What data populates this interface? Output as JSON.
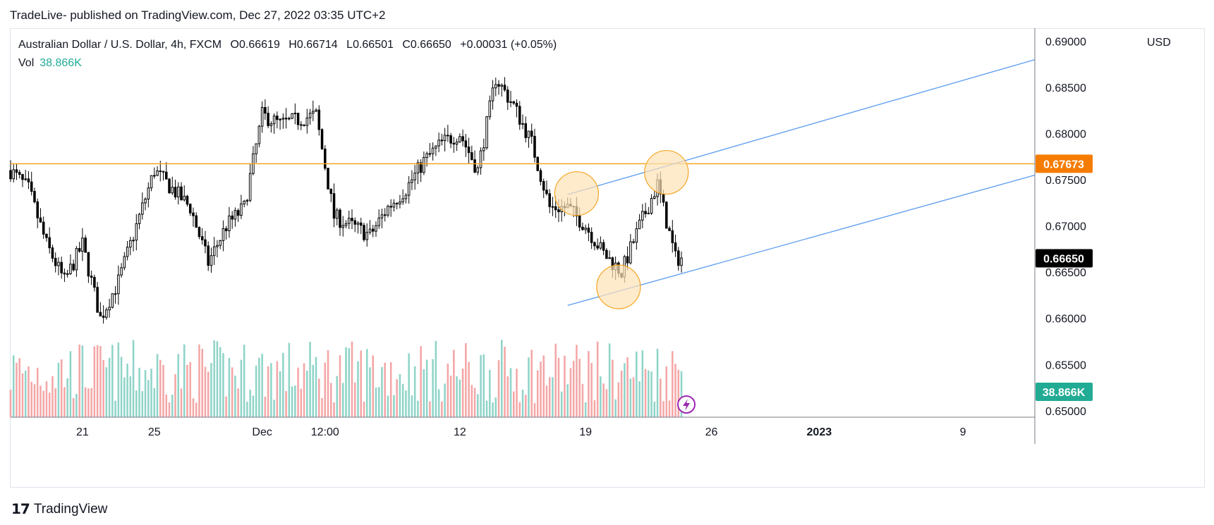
{
  "publisher_line": "TradeLive- published on TradingView.com, Dec 27, 2022 03:35 UTC+2",
  "legend": {
    "symbol": "Australian Dollar / U.S. Dollar, 4h, FXCM",
    "o_label": "O",
    "o_value": "0.66619",
    "h_label": "H",
    "h_value": "0.66714",
    "l_label": "L",
    "l_value": "0.66501",
    "c_label": "C",
    "c_value": "0.66650",
    "change": "+0.00031 (+0.05%)",
    "vol_label": "Vol",
    "vol_value": "38.866K"
  },
  "axis_unit": "USD",
  "footer_brand": "TradingView",
  "colors": {
    "up": "#ffffff",
    "down": "#000000",
    "vol_up": "#8fd4c8",
    "vol_down": "#f4a6a6",
    "level": "#f5a623",
    "channel": "#5b9cf0",
    "circle_fill": "#fde3b6",
    "circle_stroke": "#f5a623",
    "last_price_bg": "#000000",
    "vol_badge_bg": "#22ab94",
    "level_badge_bg": "#f57c00"
  },
  "chart_data": {
    "type": "candlestick",
    "y_ticks": [
      "0.69000",
      "0.68500",
      "0.68000",
      "0.67500",
      "0.67000",
      "0.66500",
      "0.66000",
      "0.65500",
      "0.65000"
    ],
    "y_tick_values": [
      0.69,
      0.685,
      0.68,
      0.675,
      0.67,
      0.665,
      0.66,
      0.655,
      0.65
    ],
    "ylim": [
      0.6493,
      0.6914
    ],
    "x_ticks": [
      "21",
      "25",
      "Dec",
      "12:00",
      "12",
      "19",
      "26",
      "2023",
      "9"
    ],
    "x_tick_dates": [
      "2022-11-21",
      "2022-11-25",
      "2022-12-01",
      "2022-12-04T12:00",
      "2022-12-12",
      "2022-12-19",
      "2022-12-26",
      "2023-01-01",
      "2023-01-09"
    ],
    "xlim": [
      "2022-11-17",
      "2023-01-13"
    ],
    "horizontal_level": {
      "price": 0.67673,
      "label": "0.67673"
    },
    "last_price_label": "0.66650",
    "volume_label": "38.866K",
    "channel_lines": [
      {
        "from": [
          "2022-12-18",
          0.6614
        ],
        "to": [
          "2023-01-13",
          0.6755
        ]
      },
      {
        "from": [
          "2022-12-18",
          0.6734
        ],
        "to": [
          "2023-01-13",
          0.688
        ]
      }
    ],
    "highlight_circles": [
      {
        "date": "2022-12-18T12:00",
        "price": 0.6735
      },
      {
        "date": "2022-12-20T20:00",
        "price": 0.6634
      },
      {
        "date": "2022-12-23T12:00",
        "price": 0.6758
      }
    ],
    "anchors": [
      [
        "2022-11-17",
        0.676
      ],
      [
        "2022-11-18",
        0.674
      ],
      [
        "2022-11-19",
        0.668
      ],
      [
        "2022-11-20",
        0.664
      ],
      [
        "2022-11-21",
        0.668
      ],
      [
        "2022-11-22",
        0.66
      ],
      [
        "2022-11-23",
        0.664
      ],
      [
        "2022-11-24",
        0.67
      ],
      [
        "2022-11-25",
        0.676
      ],
      [
        "2022-11-26",
        0.674
      ],
      [
        "2022-11-27",
        0.672
      ],
      [
        "2022-11-28",
        0.666
      ],
      [
        "2022-11-29",
        0.67
      ],
      [
        "2022-11-30",
        0.672
      ],
      [
        "2022-12-01",
        0.682
      ],
      [
        "2022-12-02",
        0.681
      ],
      [
        "2022-12-04",
        0.682
      ],
      [
        "2022-12-05",
        0.671
      ],
      [
        "2022-12-06",
        0.67
      ],
      [
        "2022-12-07",
        0.669
      ],
      [
        "2022-12-08",
        0.672
      ],
      [
        "2022-12-09",
        0.674
      ],
      [
        "2022-12-10",
        0.677
      ],
      [
        "2022-12-11",
        0.679
      ],
      [
        "2022-12-12",
        0.68
      ],
      [
        "2022-12-13",
        0.676
      ],
      [
        "2022-12-14",
        0.686
      ],
      [
        "2022-12-15",
        0.683
      ],
      [
        "2022-12-16",
        0.679
      ],
      [
        "2022-12-17",
        0.672
      ],
      [
        "2022-12-18",
        0.672
      ],
      [
        "2022-12-19",
        0.67
      ],
      [
        "2022-12-20",
        0.667
      ],
      [
        "2022-12-21",
        0.665
      ],
      [
        "2022-12-22",
        0.67
      ],
      [
        "2022-12-23",
        0.6745
      ],
      [
        "2022-12-24",
        0.6665
      ]
    ]
  }
}
